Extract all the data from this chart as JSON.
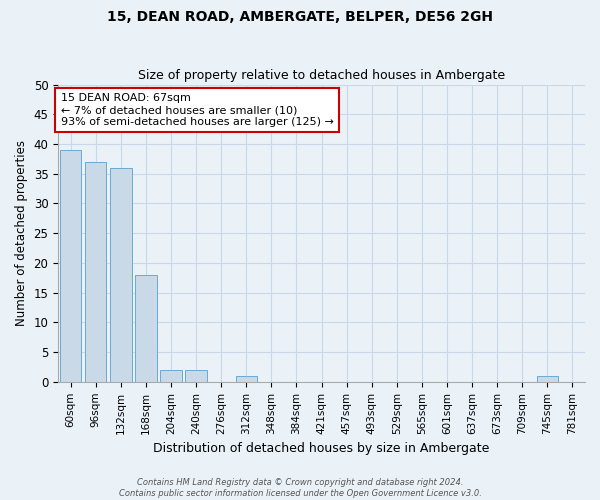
{
  "title1": "15, DEAN ROAD, AMBERGATE, BELPER, DE56 2GH",
  "title2": "Size of property relative to detached houses in Ambergate",
  "xlabel": "Distribution of detached houses by size in Ambergate",
  "ylabel": "Number of detached properties",
  "footnote": "Contains HM Land Registry data © Crown copyright and database right 2024.\nContains public sector information licensed under the Open Government Licence v3.0.",
  "categories": [
    "60sqm",
    "96sqm",
    "132sqm",
    "168sqm",
    "204sqm",
    "240sqm",
    "276sqm",
    "312sqm",
    "348sqm",
    "384sqm",
    "421sqm",
    "457sqm",
    "493sqm",
    "529sqm",
    "565sqm",
    "601sqm",
    "637sqm",
    "673sqm",
    "709sqm",
    "745sqm",
    "781sqm"
  ],
  "values": [
    39,
    37,
    36,
    18,
    2,
    2,
    0,
    1,
    0,
    0,
    0,
    0,
    0,
    0,
    0,
    0,
    0,
    0,
    0,
    1,
    0
  ],
  "bar_color": "#c9d9e8",
  "bar_edge_color": "#6aabd2",
  "annotation_text": "15 DEAN ROAD: 67sqm\n← 7% of detached houses are smaller (10)\n93% of semi-detached houses are larger (125) →",
  "annotation_box_color": "#ffffff",
  "annotation_box_edge_color": "#cc0000",
  "ylim": [
    0,
    50
  ],
  "yticks": [
    0,
    5,
    10,
    15,
    20,
    25,
    30,
    35,
    40,
    45,
    50
  ],
  "grid_color": "#c8d8e8",
  "background_color": "#eaf2f8"
}
